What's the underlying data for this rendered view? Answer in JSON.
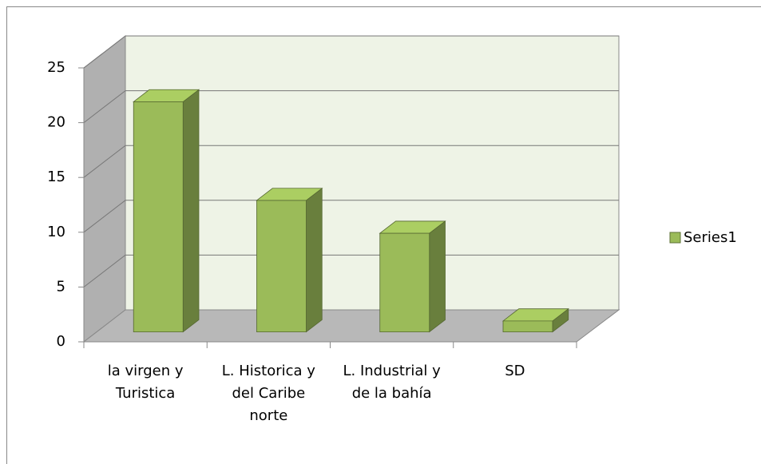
{
  "chart_data": {
    "type": "bar3d",
    "categories": [
      "la virgen y\nTuristica",
      "L. Historica y\ndel Caribe\nnorte",
      "L. Industrial y\nde la bahía",
      "SD"
    ],
    "series": [
      {
        "name": "Series1",
        "color": "#9bbb59",
        "values": [
          21,
          12,
          9,
          1
        ]
      }
    ],
    "ylim": [
      0,
      25
    ],
    "yticks": [
      0,
      5,
      10,
      15,
      20,
      25
    ],
    "grid": true,
    "legend": "right"
  }
}
